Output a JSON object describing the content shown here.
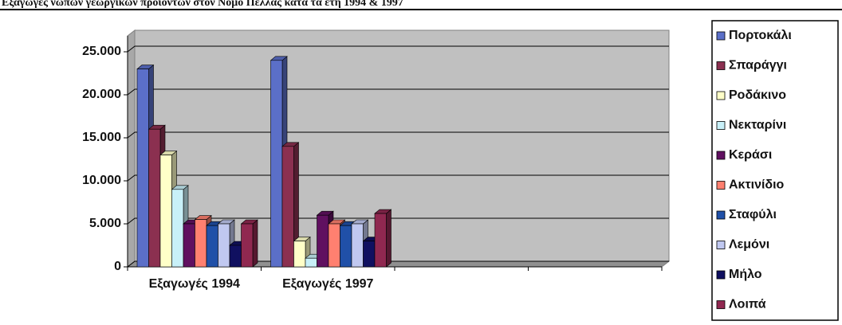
{
  "chart_data": {
    "type": "bar",
    "title": "Εξαγωγές νωπών γεωργικών προϊόντων στον Νομό Πέλλας κατά τα έτη 1994 & 1997",
    "categories": [
      "Εξαγωγές 1994",
      "Εξαγωγές 1997",
      null,
      null
    ],
    "series": [
      {
        "name": "Πορτοκάλι",
        "color": "#5b6fc8",
        "values": [
          23000,
          24000,
          null,
          null
        ]
      },
      {
        "name": "Σπαράγγι",
        "color": "#8b3050",
        "values": [
          16000,
          14000,
          null,
          null
        ]
      },
      {
        "name": "Ροδάκινο",
        "color": "#ffffc8",
        "values": [
          13000,
          3000,
          null,
          null
        ]
      },
      {
        "name": "Νεκταρίνι",
        "color": "#c8f0f8",
        "values": [
          9000,
          1000,
          null,
          null
        ]
      },
      {
        "name": "Κεράσι",
        "color": "#601060",
        "values": [
          5000,
          6000,
          null,
          null
        ]
      },
      {
        "name": "Ακτινίδιο",
        "color": "#ff8070",
        "values": [
          5500,
          5000,
          null,
          null
        ]
      },
      {
        "name": "Σταφύλι",
        "color": "#2050a8",
        "values": [
          4800,
          4800,
          null,
          null
        ]
      },
      {
        "name": "Λεμόνι",
        "color": "#c0c8f0",
        "values": [
          5000,
          5000,
          null,
          null
        ]
      },
      {
        "name": "Μήλο",
        "color": "#101060",
        "values": [
          2500,
          3000,
          null,
          null
        ]
      },
      {
        "name": "Λοιπά",
        "color": "#902850",
        "values": [
          5000,
          6200,
          null,
          null
        ]
      }
    ],
    "ylim": [
      0,
      25000
    ],
    "yticks": [
      {
        "value": 0,
        "label": "0"
      },
      {
        "value": 5000,
        "label": "5.000"
      },
      {
        "value": 10000,
        "label": "10.000"
      },
      {
        "value": 15000,
        "label": "15.000"
      },
      {
        "value": 20000,
        "label": "20.000"
      },
      {
        "value": 25000,
        "label": "25.000"
      }
    ],
    "grid": true,
    "legend": "right"
  }
}
